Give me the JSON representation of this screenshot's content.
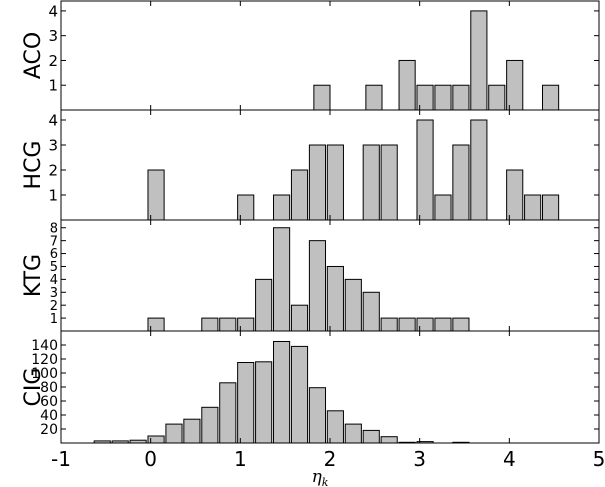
{
  "chart_data": {
    "type": "bar",
    "xlabel": "η",
    "xlabel_sub": "k",
    "xlim": [
      -1,
      5
    ],
    "xticks": [
      "-1",
      "0",
      "1",
      "2",
      "3",
      "4",
      "5"
    ],
    "bar_width": 0.18,
    "bar_color": "#c0c0c0",
    "panels": [
      {
        "name": "ACO",
        "ylabel": "ACO",
        "ylim": [
          0,
          4.4
        ],
        "yticks": [
          "1",
          "2",
          "3",
          "4"
        ],
        "x": [
          1.91,
          2.49,
          2.86,
          3.06,
          3.26,
          3.46,
          3.66,
          3.86,
          4.06,
          4.46
        ],
        "values": [
          1,
          1,
          2,
          1,
          1,
          1,
          4,
          1,
          2,
          1
        ]
      },
      {
        "name": "HCG",
        "ylabel": "HCG",
        "ylim": [
          0,
          4.4
        ],
        "yticks": [
          "1",
          "2",
          "3",
          "4"
        ],
        "x": [
          0.06,
          1.06,
          1.46,
          1.66,
          1.86,
          2.06,
          2.46,
          2.66,
          3.06,
          3.26,
          3.46,
          3.66,
          4.06,
          4.26,
          4.46
        ],
        "values": [
          2,
          1,
          1,
          2,
          3,
          3,
          3,
          3,
          4,
          1,
          3,
          4,
          2,
          1,
          1
        ]
      },
      {
        "name": "KTG",
        "ylabel": "KTG",
        "ylim": [
          0,
          8.6
        ],
        "yticks": [
          "1",
          "2",
          "3",
          "4",
          "5",
          "6",
          "7",
          "8"
        ],
        "x": [
          0.06,
          0.66,
          0.86,
          1.06,
          1.26,
          1.46,
          1.66,
          1.86,
          2.06,
          2.26,
          2.46,
          2.66,
          2.86,
          3.06,
          3.26,
          3.46
        ],
        "values": [
          1,
          1,
          1,
          1,
          4,
          8,
          2,
          7,
          5,
          4,
          3,
          1,
          1,
          1,
          1,
          1
        ]
      },
      {
        "name": "CIG",
        "ylabel": "CIG",
        "ylim": [
          0,
          160
        ],
        "yticks": [
          "20",
          "40",
          "60",
          "80",
          "100",
          "120",
          "140"
        ],
        "x": [
          -0.54,
          -0.34,
          -0.14,
          0.06,
          0.26,
          0.46,
          0.66,
          0.86,
          1.06,
          1.26,
          1.46,
          1.66,
          1.86,
          2.06,
          2.26,
          2.46,
          2.66,
          2.86,
          3.06,
          3.26,
          3.46
        ],
        "values": [
          3,
          3,
          4,
          10,
          27,
          34,
          51,
          86,
          115,
          116,
          145,
          138,
          79,
          46,
          27,
          18,
          9,
          1,
          2,
          0,
          1
        ]
      }
    ]
  }
}
